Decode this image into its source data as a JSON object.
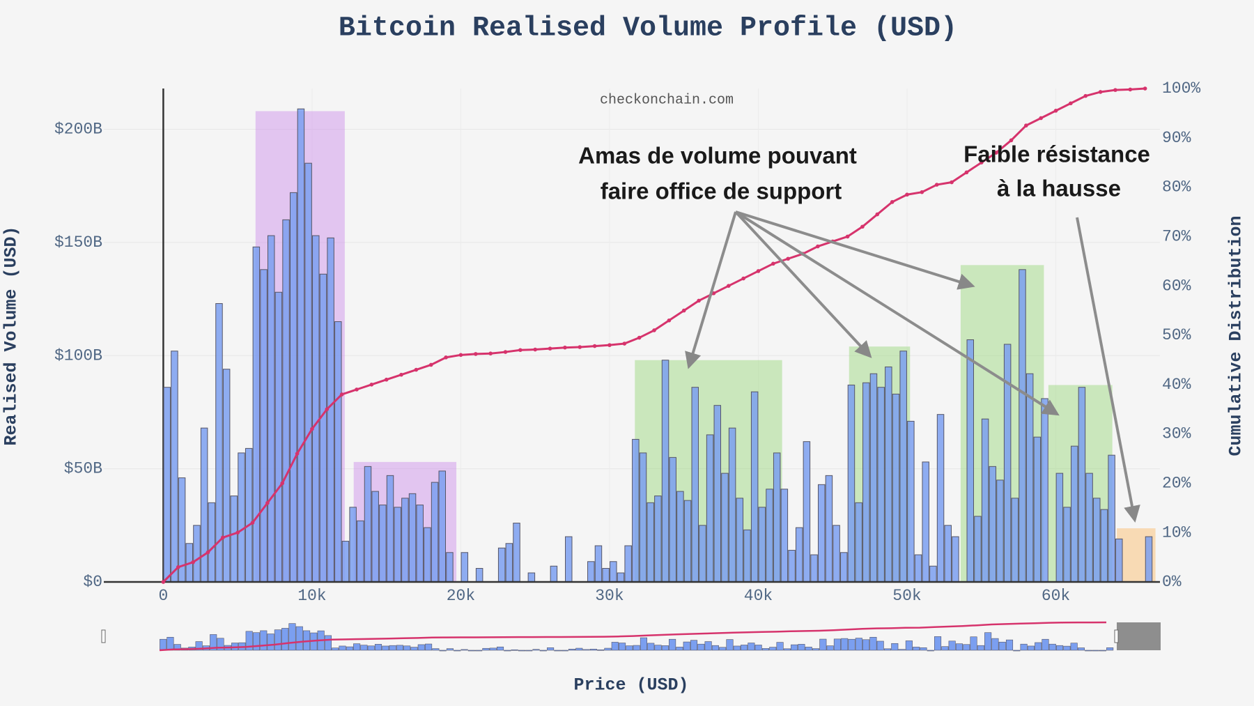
{
  "chart_data": {
    "type": "histogram",
    "title": "Bitcoin Realised Volume Profile (USD)",
    "watermark": "checkonchain.com",
    "x_label": "Price (USD)",
    "y_label": "Realised Volume (USD)",
    "y2_label": "Cumulative Distribution",
    "xlim": [
      -4000,
      67000
    ],
    "xticks": [
      0,
      {
        "value": 10000,
        "label": "10k"
      },
      {
        "value": 20000,
        "label": "20k"
      },
      {
        "value": 30000,
        "label": "30k"
      },
      {
        "value": 40000,
        "label": "40k"
      },
      {
        "value": 50000,
        "label": "50k"
      },
      {
        "value": 60000,
        "label": "60k"
      }
    ],
    "ylim": [
      0,
      218
    ],
    "yticks": [
      {
        "value": 0,
        "label": "$0"
      },
      {
        "value": 50,
        "label": "$50B"
      },
      {
        "value": 100,
        "label": "$100B"
      },
      {
        "value": 150,
        "label": "$150B"
      },
      {
        "value": 200,
        "label": "$200B"
      }
    ],
    "y2lim": [
      0,
      100
    ],
    "y2ticks": [
      {
        "value": 0,
        "label": "0%"
      },
      {
        "value": 10,
        "label": "10%"
      },
      {
        "value": 20,
        "label": "20%"
      },
      {
        "value": 30,
        "label": "30%"
      },
      {
        "value": 40,
        "label": "40%"
      },
      {
        "value": 50,
        "label": "50%"
      },
      {
        "value": 60,
        "label": "60%"
      },
      {
        "value": 70,
        "label": "70%"
      },
      {
        "value": 80,
        "label": "80%"
      },
      {
        "value": 90,
        "label": "90%"
      },
      {
        "value": 100,
        "label": "100%"
      }
    ],
    "grid": true,
    "color": "#7b9ff0",
    "bins": [
      0,
      500,
      1000,
      1500,
      2000,
      2500,
      3000,
      3500,
      4000,
      4500,
      5000,
      5500,
      6000,
      6500,
      7000,
      7500,
      8000,
      8500,
      9000,
      9500,
      10000,
      10500,
      11000,
      11500,
      12000,
      12500,
      13000,
      13500,
      14000,
      14500,
      15000,
      15500,
      16000,
      16500,
      17000,
      17500,
      18000,
      18500,
      19000,
      19500,
      20000,
      20500,
      21000,
      21500,
      22000,
      22500,
      23000,
      23500,
      24000,
      24500,
      25000,
      25500,
      26000,
      26500,
      27000,
      27500,
      28000,
      28500,
      29000,
      29500,
      30000,
      30500,
      31000,
      31500,
      32000,
      32500,
      33000,
      33500,
      34000,
      34500,
      35000,
      35500,
      36000,
      36500,
      37000,
      37500,
      38000,
      38500,
      39000,
      39500,
      40000,
      40500,
      41000,
      41500,
      42000,
      42500,
      43000,
      43500,
      44000,
      44500,
      45000,
      45500,
      46000,
      46500,
      47000,
      47500,
      48000,
      48500,
      49000,
      49500,
      50000,
      50500,
      51000,
      51500,
      52000,
      52500,
      53000,
      53500,
      54000,
      54500,
      55000,
      55500,
      56000,
      56500,
      57000,
      57500,
      58000,
      58500,
      59000,
      59500,
      60000,
      60500,
      61000,
      61500,
      62000,
      62500,
      63000,
      63500,
      64000,
      64500,
      65000,
      65500,
      66000,
      66500
    ],
    "values": [
      86,
      102,
      46,
      17,
      25,
      68,
      35,
      123,
      94,
      38,
      57,
      59,
      148,
      138,
      153,
      128,
      160,
      172,
      209,
      185,
      153,
      136,
      152,
      115,
      18,
      33,
      27,
      51,
      40,
      34,
      47,
      33,
      37,
      39,
      34,
      24,
      44,
      49,
      13,
      0,
      13,
      0,
      6,
      0,
      0,
      15,
      17,
      26,
      0,
      4,
      0,
      0,
      7,
      0,
      20,
      0,
      0,
      9,
      16,
      6,
      9,
      4,
      16,
      63,
      57,
      35,
      38,
      98,
      55,
      40,
      36,
      86,
      25,
      65,
      78,
      48,
      68,
      37,
      23,
      84,
      33,
      41,
      57,
      41,
      14,
      24,
      62,
      12,
      43,
      47,
      25,
      13,
      87,
      35,
      88,
      92,
      86,
      95,
      83,
      102,
      71,
      12,
      53,
      7,
      74,
      25,
      20,
      0,
      107,
      29,
      72,
      51,
      45,
      105,
      37,
      138,
      92,
      64,
      81,
      0,
      48,
      33,
      60,
      86,
      48,
      37,
      32,
      56,
      19,
      0,
      0,
      0,
      20
    ],
    "cumulative": {
      "axis": "y2",
      "color": "#d6336c",
      "x": [
        0,
        1000,
        2000,
        3000,
        4000,
        5000,
        6000,
        7000,
        8000,
        9000,
        10000,
        11000,
        12000,
        13000,
        14000,
        15000,
        16000,
        17000,
        18000,
        19000,
        20000,
        21000,
        22000,
        23000,
        24000,
        25000,
        26000,
        27000,
        28000,
        29000,
        30000,
        31000,
        32000,
        33000,
        34000,
        35000,
        36000,
        37000,
        38000,
        39000,
        40000,
        41000,
        42000,
        43000,
        44000,
        45000,
        46000,
        47000,
        48000,
        49000,
        50000,
        51000,
        52000,
        53000,
        54000,
        55000,
        56000,
        57000,
        58000,
        59000,
        60000,
        61000,
        62000,
        63000,
        64000,
        65000,
        66000
      ],
      "values": [
        0,
        3,
        4,
        6,
        9,
        10,
        12,
        16,
        20,
        26,
        31,
        35,
        38,
        39,
        40,
        41,
        42,
        43,
        44,
        45.5,
        46,
        46.2,
        46.3,
        46.6,
        47,
        47.1,
        47.3,
        47.5,
        47.6,
        47.8,
        48,
        48.3,
        49.5,
        51,
        53,
        55,
        57,
        58.5,
        60,
        61.5,
        63,
        64.5,
        65.5,
        66.5,
        68,
        69,
        70,
        72,
        74.5,
        77,
        78.5,
        79,
        80.5,
        81,
        83,
        85,
        87,
        89.5,
        92.5,
        94,
        95.5,
        97,
        98.5,
        99.3,
        99.7,
        99.8,
        100
      ]
    },
    "regions": [
      {
        "x0": 6200,
        "x1": 12200,
        "y1": 208,
        "color": "rgba(205,140,235,0.45)"
      },
      {
        "x0": 12800,
        "x1": 19700,
        "y1": 53,
        "color": "rgba(205,140,235,0.45)"
      },
      {
        "x0": 31700,
        "x1": 41600,
        "y1": 98,
        "color": "rgba(150,215,120,0.45)"
      },
      {
        "x0": 46100,
        "x1": 50200,
        "y1": 104,
        "color": "rgba(150,215,120,0.45)"
      },
      {
        "x0": 53600,
        "x1": 59200,
        "y1": 140,
        "color": "rgba(150,215,120,0.45)"
      },
      {
        "x0": 59500,
        "x1": 63800,
        "y1": 87,
        "color": "rgba(150,215,120,0.45)"
      },
      {
        "x0": 64100,
        "x1": 66700,
        "y1": 23.7,
        "color": "rgba(250,195,125,0.55)"
      }
    ],
    "annotations": [
      [
        "Amas de volume pouvant",
        "faire office de support"
      ],
      [
        "Faible résistance",
        "à la hausse"
      ]
    ]
  }
}
